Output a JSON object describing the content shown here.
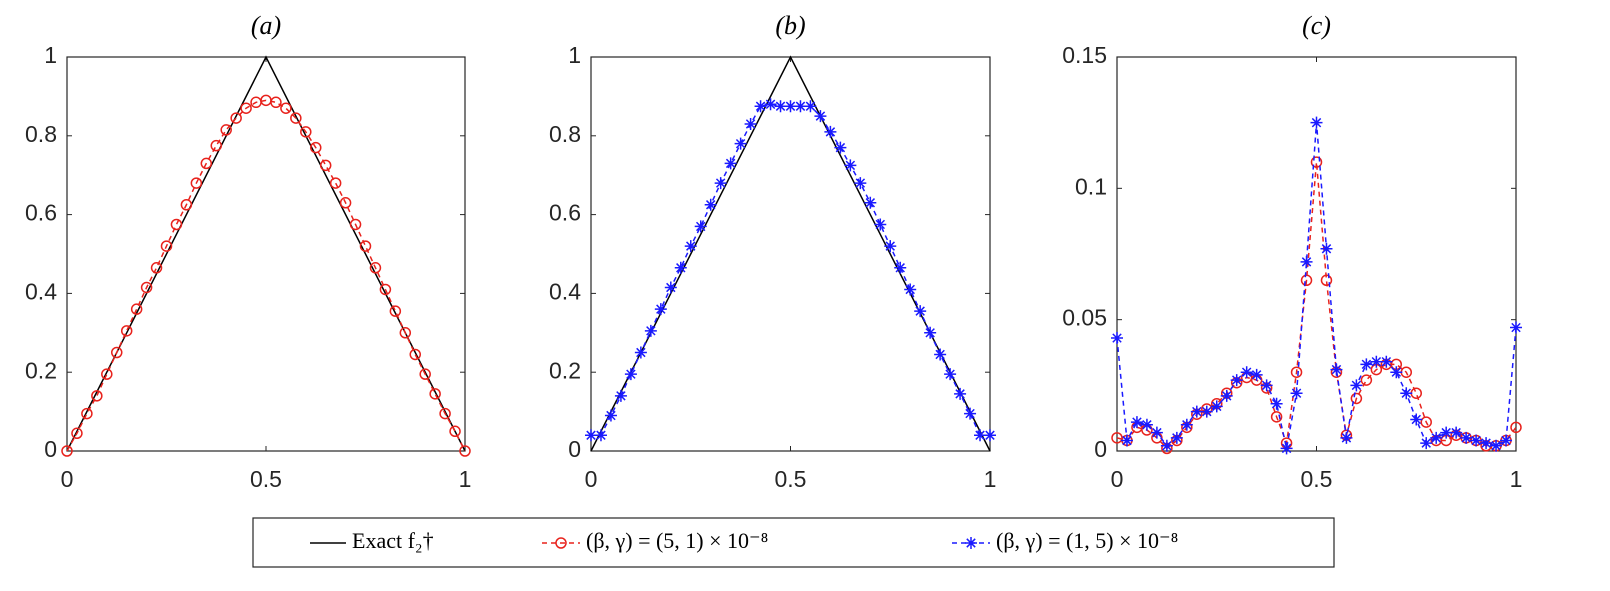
{
  "chart_data": [
    {
      "type": "line",
      "title": "(a)",
      "xlim": [
        0,
        1
      ],
      "ylim": [
        0,
        1
      ],
      "xticks": [
        0,
        0.5,
        1
      ],
      "yticks": [
        0,
        0.2,
        0.4,
        0.6,
        0.8,
        1
      ],
      "x": [
        0,
        0.025,
        0.05,
        0.075,
        0.1,
        0.125,
        0.15,
        0.175,
        0.2,
        0.225,
        0.25,
        0.275,
        0.3,
        0.325,
        0.35,
        0.375,
        0.4,
        0.425,
        0.45,
        0.475,
        0.5,
        0.525,
        0.55,
        0.575,
        0.6,
        0.625,
        0.65,
        0.675,
        0.7,
        0.725,
        0.75,
        0.775,
        0.8,
        0.825,
        0.85,
        0.875,
        0.9,
        0.925,
        0.95,
        0.975,
        1
      ],
      "series": [
        {
          "name": "Exact f₂†",
          "color": "#000000",
          "x": [
            0,
            0.5,
            1
          ],
          "values": [
            0,
            1,
            0
          ]
        },
        {
          "name": "(β, γ) = (5, 1) × 10⁻⁸",
          "color": "#e8221c",
          "marker": "circle",
          "values": [
            0,
            0.045,
            0.095,
            0.14,
            0.195,
            0.25,
            0.305,
            0.36,
            0.415,
            0.465,
            0.52,
            0.575,
            0.625,
            0.68,
            0.73,
            0.775,
            0.815,
            0.845,
            0.87,
            0.885,
            0.89,
            0.885,
            0.87,
            0.845,
            0.81,
            0.77,
            0.725,
            0.68,
            0.63,
            0.575,
            0.52,
            0.465,
            0.41,
            0.355,
            0.3,
            0.245,
            0.195,
            0.145,
            0.095,
            0.05,
            0
          ]
        }
      ]
    },
    {
      "type": "line",
      "title": "(b)",
      "xlim": [
        0,
        1
      ],
      "ylim": [
        0,
        1
      ],
      "xticks": [
        0,
        0.5,
        1
      ],
      "yticks": [
        0,
        0.2,
        0.4,
        0.6,
        0.8,
        1
      ],
      "x": [
        0,
        0.025,
        0.05,
        0.075,
        0.1,
        0.125,
        0.15,
        0.175,
        0.2,
        0.225,
        0.25,
        0.275,
        0.3,
        0.325,
        0.35,
        0.375,
        0.4,
        0.425,
        0.45,
        0.475,
        0.5,
        0.525,
        0.55,
        0.575,
        0.6,
        0.625,
        0.65,
        0.675,
        0.7,
        0.725,
        0.75,
        0.775,
        0.8,
        0.825,
        0.85,
        0.875,
        0.9,
        0.925,
        0.95,
        0.975,
        1
      ],
      "series": [
        {
          "color": "#000000",
          "x": [
            0,
            0.5,
            1
          ],
          "values": [
            0,
            1,
            0
          ]
        },
        {
          "name": "(β, γ) = (1, 5) × 10⁻⁸",
          "color": "#1a1aff",
          "marker": "asterisk",
          "values": [
            0.04,
            0.04,
            0.09,
            0.14,
            0.195,
            0.25,
            0.305,
            0.36,
            0.415,
            0.465,
            0.52,
            0.57,
            0.625,
            0.68,
            0.73,
            0.78,
            0.83,
            0.875,
            0.88,
            0.875,
            0.875,
            0.875,
            0.875,
            0.85,
            0.81,
            0.77,
            0.725,
            0.68,
            0.63,
            0.575,
            0.52,
            0.465,
            0.41,
            0.355,
            0.3,
            0.245,
            0.195,
            0.145,
            0.095,
            0.04,
            0.04
          ]
        }
      ]
    },
    {
      "type": "line",
      "title": "(c)",
      "xlim": [
        0,
        1
      ],
      "ylim": [
        0,
        0.15
      ],
      "xticks": [
        0,
        0.5,
        1
      ],
      "yticks": [
        0,
        0.05,
        0.1,
        0.15
      ],
      "x": [
        0,
        0.025,
        0.05,
        0.075,
        0.1,
        0.125,
        0.15,
        0.175,
        0.2,
        0.225,
        0.25,
        0.275,
        0.3,
        0.325,
        0.35,
        0.375,
        0.4,
        0.425,
        0.45,
        0.475,
        0.5,
        0.525,
        0.55,
        0.575,
        0.6,
        0.625,
        0.65,
        0.675,
        0.7,
        0.725,
        0.75,
        0.775,
        0.8,
        0.825,
        0.85,
        0.875,
        0.9,
        0.925,
        0.95,
        0.975,
        1
      ],
      "series": [
        {
          "color": "#e8221c",
          "marker": "circle",
          "values": [
            0.005,
            0.004,
            0.009,
            0.008,
            0.005,
            0.001,
            0.004,
            0.009,
            0.014,
            0.016,
            0.018,
            0.022,
            0.026,
            0.028,
            0.027,
            0.024,
            0.013,
            0.003,
            0.03,
            0.065,
            0.11,
            0.065,
            0.03,
            0.006,
            0.02,
            0.027,
            0.031,
            0.033,
            0.033,
            0.03,
            0.022,
            0.011,
            0.004,
            0.004,
            0.006,
            0.005,
            0.004,
            0.002,
            0.002,
            0.004,
            0.009
          ]
        },
        {
          "color": "#1a1aff",
          "marker": "asterisk",
          "values": [
            0.043,
            0.004,
            0.011,
            0.01,
            0.007,
            0.002,
            0.005,
            0.01,
            0.015,
            0.015,
            0.017,
            0.021,
            0.027,
            0.03,
            0.029,
            0.025,
            0.018,
            0.001,
            0.022,
            0.072,
            0.125,
            0.077,
            0.031,
            0.005,
            0.025,
            0.033,
            0.034,
            0.034,
            0.03,
            0.022,
            0.012,
            0.003,
            0.005,
            0.007,
            0.007,
            0.005,
            0.004,
            0.003,
            0.002,
            0.004,
            0.047
          ]
        }
      ]
    }
  ]
}
